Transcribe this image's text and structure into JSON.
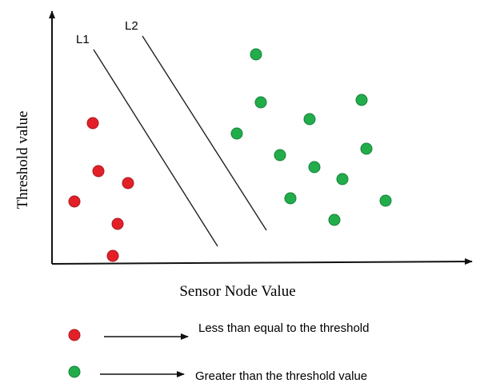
{
  "diagram": {
    "axes": {
      "x_label": "Sensor Node Value",
      "y_label": "Threshold value"
    },
    "lines": [
      {
        "label": "L1"
      },
      {
        "label": "L2"
      }
    ],
    "legend": [
      {
        "label": "Less than equal to the threshold"
      },
      {
        "label": "Greater than the threshold value"
      }
    ]
  }
}
